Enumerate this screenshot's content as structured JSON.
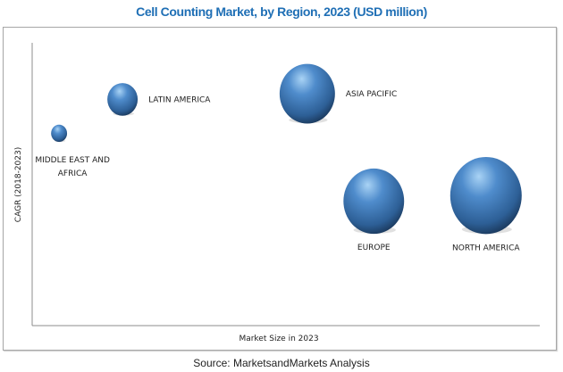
{
  "chart_data": {
    "type": "scatter",
    "subtype": "bubble",
    "title": "Cell Counting Market, by Region, 2023 (USD million)",
    "xlabel": "Market Size in 2023",
    "ylabel": "CAGR (2018-2023)",
    "xlim": [
      0,
      100
    ],
    "ylim": [
      0,
      100
    ],
    "grid": false,
    "axis_ticks": "none (relative positioning)",
    "bubble_color": "#3f76b8",
    "points": [
      {
        "label": "MIDDLE EAST AND AFRICA",
        "label_lines": [
          "MIDDLE EAST AND",
          "AFRICA"
        ],
        "x": 5.3,
        "y": 68,
        "size": 5,
        "label_position": "below"
      },
      {
        "label": "LATIN AMERICA",
        "label_lines": [
          "LATIN AMERICA"
        ],
        "x": 17.8,
        "y": 80,
        "size": 18,
        "label_position": "right"
      },
      {
        "label": "ASIA PACIFIC",
        "label_lines": [
          "ASIA PACIFIC"
        ],
        "x": 54.2,
        "y": 82,
        "size": 60,
        "label_position": "right"
      },
      {
        "label": "EUROPE",
        "label_lines": [
          "EUROPE"
        ],
        "x": 67.3,
        "y": 44,
        "size": 72,
        "label_position": "below"
      },
      {
        "label": "NORTH AMERICA",
        "label_lines": [
          "NORTH AMERICA"
        ],
        "x": 89.4,
        "y": 46,
        "size": 100,
        "label_position": "below"
      }
    ]
  },
  "source": "Source: MarketsandMarkets Analysis"
}
